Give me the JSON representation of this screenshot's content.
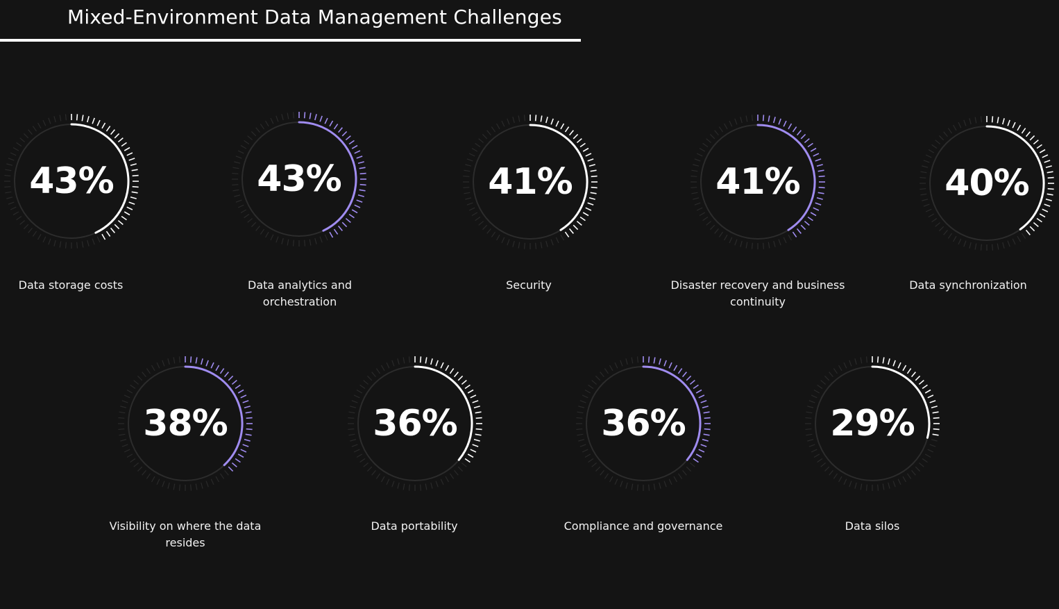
{
  "header": {
    "title": "Mixed-Environment Data Management Challenges"
  },
  "colors": {
    "background": "#141414",
    "white_accent": "#ffffff",
    "purple_accent": "#a08cf0",
    "track": "#2c2c2c",
    "tick_dim": "#2a2a2a"
  },
  "chart_data": {
    "type": "gauge",
    "title": "Mixed-Environment Data Management Challenges",
    "unit": "%",
    "items": [
      {
        "label": "Data storage costs",
        "value": 43,
        "display": "43%",
        "accent": "white"
      },
      {
        "label": "Data analytics and orchestration",
        "value": 43,
        "display": "43%",
        "accent": "purple"
      },
      {
        "label": "Security",
        "value": 41,
        "display": "41%",
        "accent": "white"
      },
      {
        "label": "Disaster recovery and business continuity",
        "value": 41,
        "display": "41%",
        "accent": "purple"
      },
      {
        "label": "Data synchronization",
        "value": 40,
        "display": "40%",
        "accent": "white"
      },
      {
        "label": "Visibility on where the data resides",
        "value": 38,
        "display": "38%",
        "accent": "purple"
      },
      {
        "label": "Data portability",
        "value": 36,
        "display": "36%",
        "accent": "white"
      },
      {
        "label": "Compliance and governance",
        "value": 36,
        "display": "36%",
        "accent": "purple"
      },
      {
        "label": "Data silos",
        "value": 29,
        "display": "29%",
        "accent": "white"
      }
    ]
  }
}
